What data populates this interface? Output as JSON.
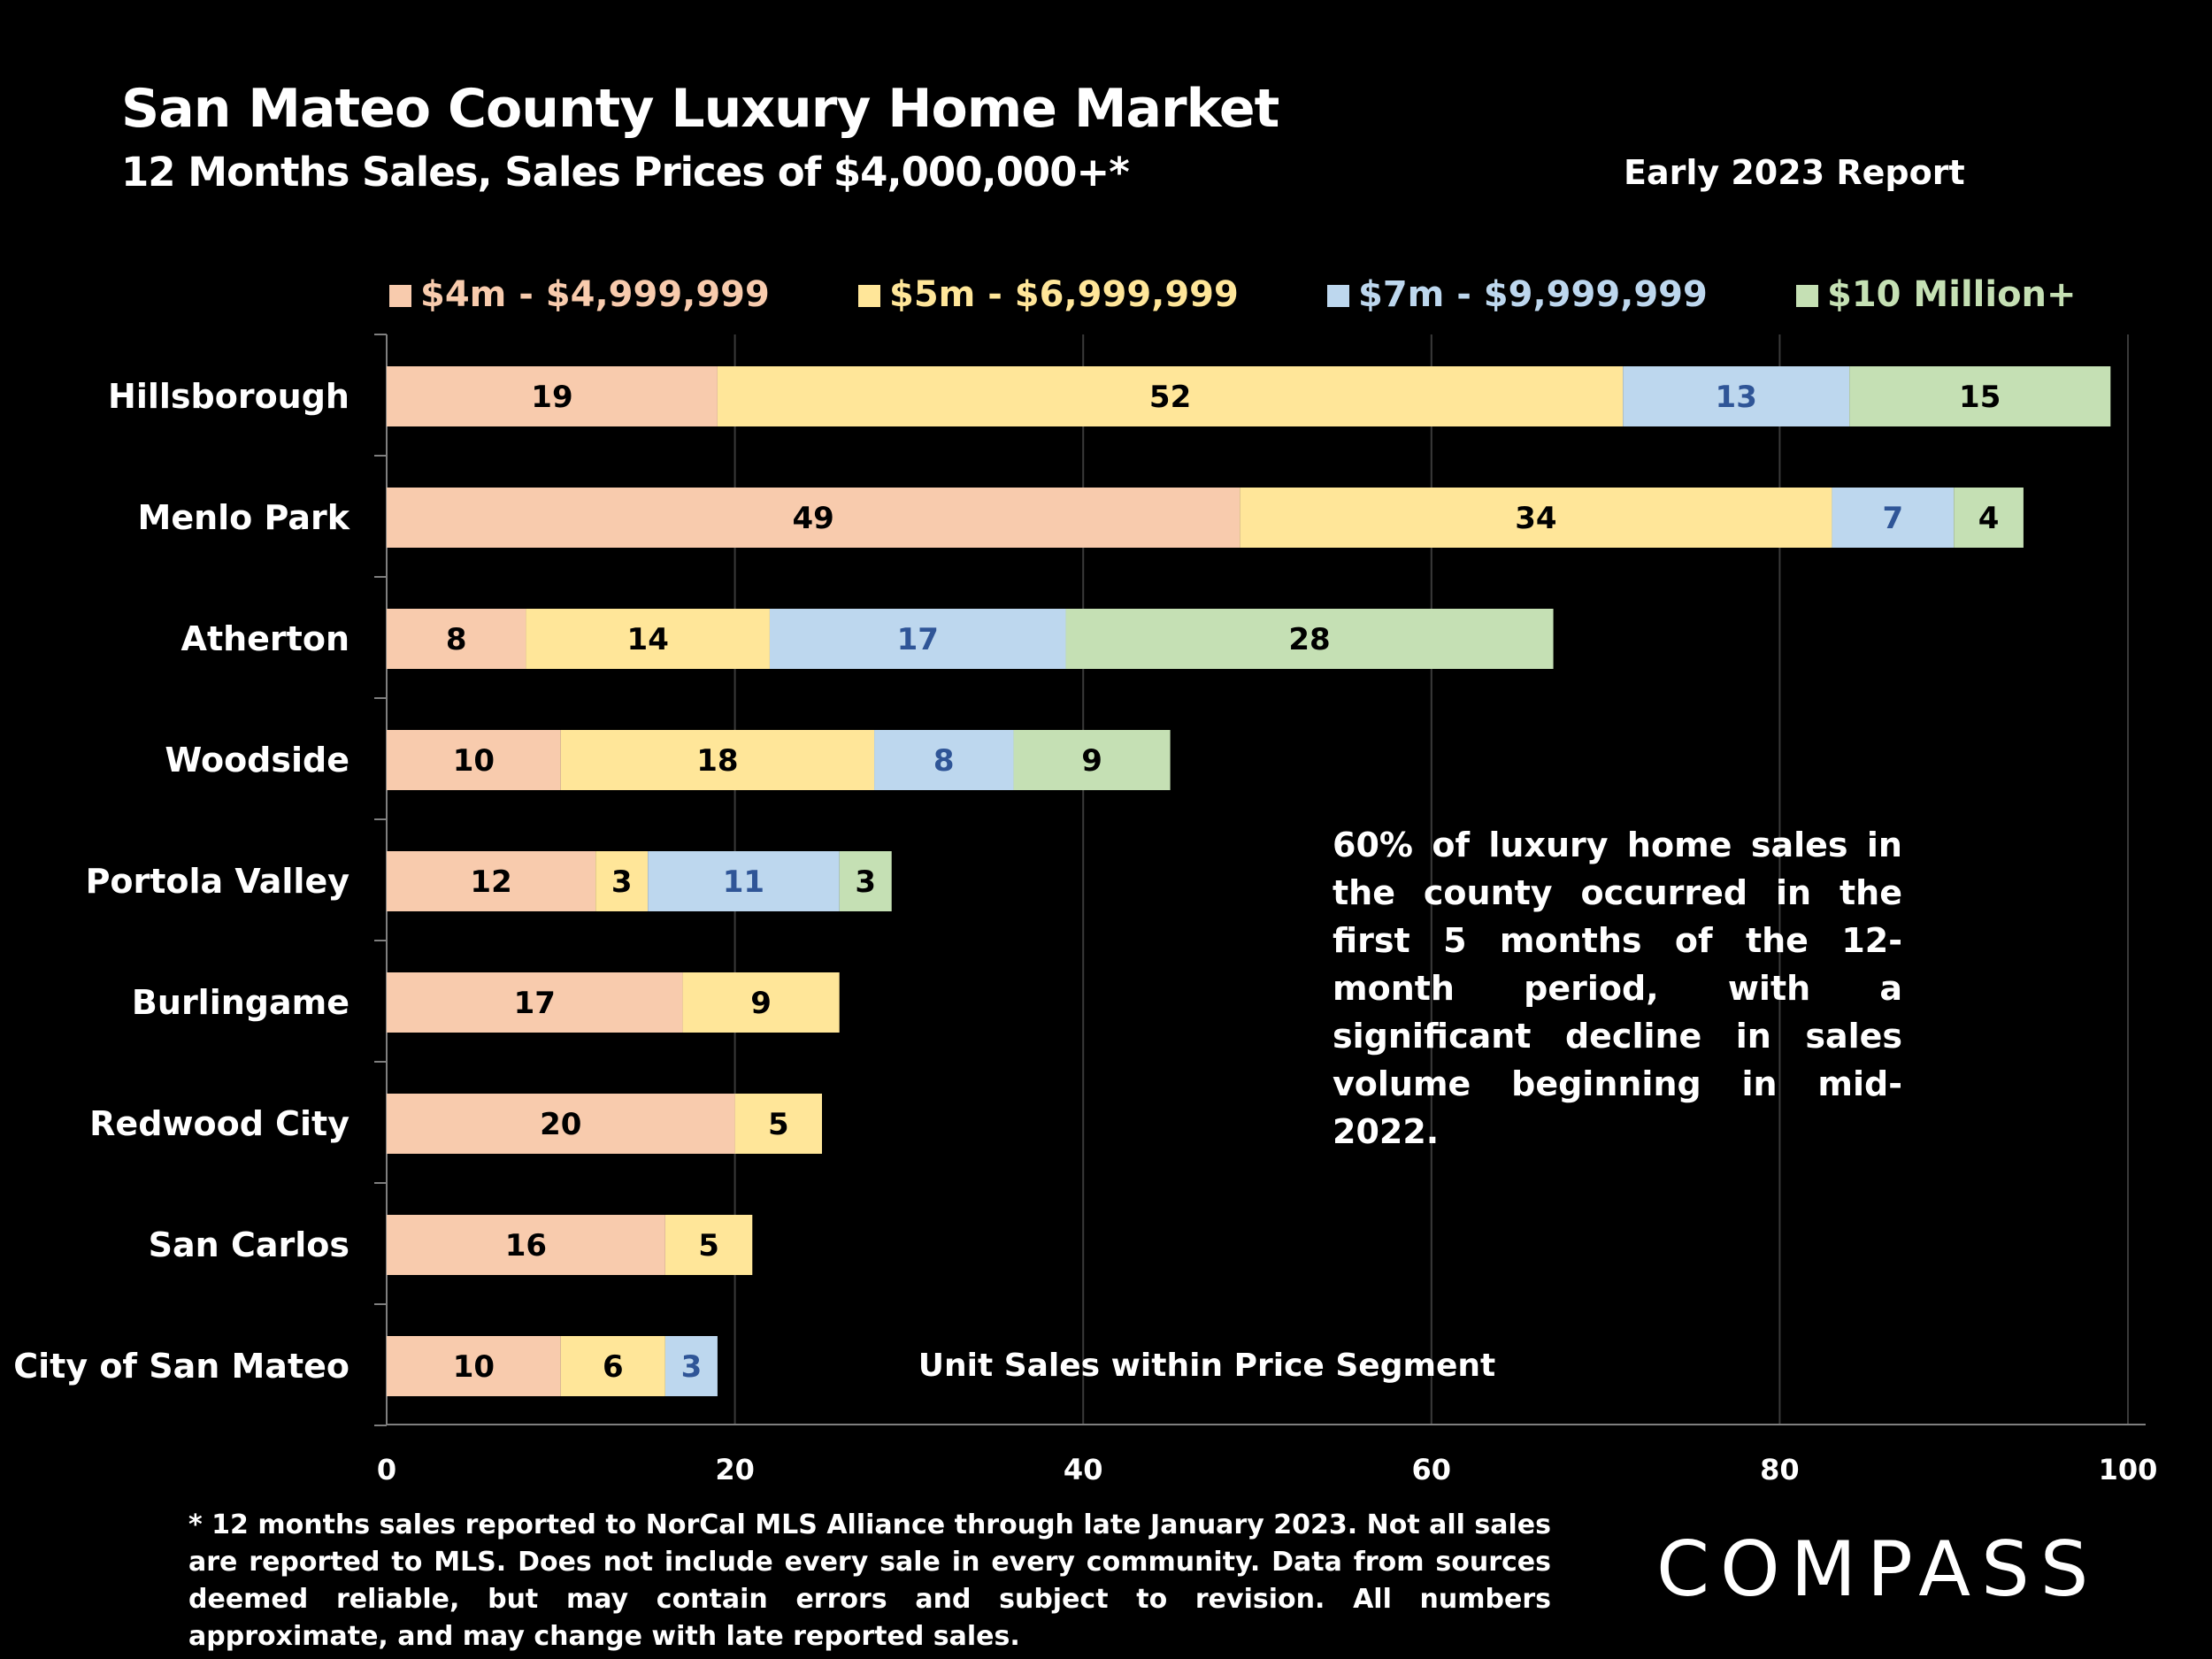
{
  "title": "San Mateo County Luxury Home Market",
  "subtitle": "12 Months Sales, Sales Prices of $4,000,000+*",
  "report_label": "Early 2023 Report",
  "note": "60% of luxury home sales in the county occurred in the first 5 months of the 12-month period, with a significant decline in sales volume beginning in mid-2022.",
  "footnote": "* 12 months sales reported to NorCal MLS Alliance through late January 2023. Not all sales are reported to MLS. Does not include every sale in every community. Data from  sources deemed reliable, but may contain errors and subject to revision. All numbers approximate, and may change with late reported sales.",
  "logo_text": "COMPASS",
  "chart_data": {
    "type": "bar",
    "orientation": "horizontal",
    "stacked": true,
    "categories": [
      "Hillsborough",
      "Menlo Park",
      "Atherton",
      "Woodside",
      "Portola Valley",
      "Burlingame",
      "Redwood City",
      "San Carlos",
      "City of San Mateo"
    ],
    "series": [
      {
        "name": "$4m - $4,999,999",
        "color": "#F8CBAD",
        "label_color": "#000000",
        "values": [
          19,
          49,
          8,
          10,
          12,
          17,
          20,
          16,
          10
        ]
      },
      {
        "name": "$5m - $6,999,999",
        "color": "#FFE699",
        "label_color": "#000000",
        "values": [
          52,
          34,
          14,
          18,
          3,
          9,
          5,
          5,
          6
        ]
      },
      {
        "name": "$7m - $9,999,999",
        "color": "#BDD7EE",
        "label_color": "#2F5597",
        "values": [
          13,
          7,
          17,
          8,
          11,
          0,
          0,
          0,
          3
        ]
      },
      {
        "name": "$10 Million+",
        "color": "#C5E0B4",
        "label_color": "#000000",
        "values": [
          15,
          4,
          28,
          9,
          3,
          0,
          0,
          0,
          0
        ]
      }
    ],
    "xlim": [
      0,
      100
    ],
    "xticks": [
      0,
      20,
      40,
      60,
      80,
      100
    ],
    "xlabel": "Unit Sales within Price Segment",
    "legend_position": "top",
    "grid": true
  }
}
